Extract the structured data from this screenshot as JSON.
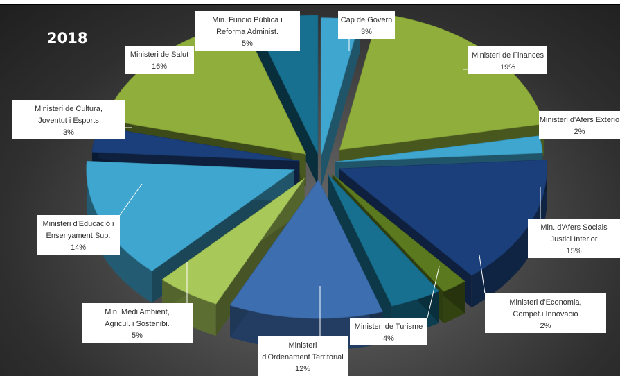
{
  "colors": {
    "green": "#8fae3b",
    "light_green": "#a8c85a",
    "olive": "#5b7a1f",
    "blue_light": "#3fa7cf",
    "blue_mid": "#3d6fb0",
    "navy": "#1b3f7a",
    "teal": "#17708f",
    "dark_teal": "#0f5570"
  },
  "chart_data": {
    "type": "pie",
    "title": "2018",
    "unit": "%",
    "slices": [
      {
        "label": "Cap de Govern",
        "value": 3,
        "display": "3%"
      },
      {
        "label": "Ministeri de Finances",
        "value": 19,
        "display": "19%"
      },
      {
        "label": "Ministeri d'Afers Exterio",
        "value": 2,
        "display": "2%"
      },
      {
        "label": "Min. d'Afers Socials Justici Interior",
        "value": 15,
        "display": "15%"
      },
      {
        "label": "Ministeri d'Economia, Compet.i Innovació",
        "value": 2,
        "display": "2%"
      },
      {
        "label": "Ministeri de Turisme",
        "value": 4,
        "display": "4%"
      },
      {
        "label": "Ministeri d'Ordenament Territorial",
        "value": 12,
        "display": "12%"
      },
      {
        "label": "Min. Medi Ambient, Agricul. i Sostenibi.",
        "value": 5,
        "display": "5%"
      },
      {
        "label": "Ministeri d'Educació i Ensenyament Sup.",
        "value": 14,
        "display": "14%"
      },
      {
        "label": "Ministeri de Cultura, Joventut i Esports",
        "value": 3,
        "display": "3%"
      },
      {
        "label": "Ministeri de Salut",
        "value": 16,
        "display": "16%"
      },
      {
        "label": "Min. Funció Pública i Reforma Administ.",
        "value": 5,
        "display": "5%"
      }
    ]
  }
}
